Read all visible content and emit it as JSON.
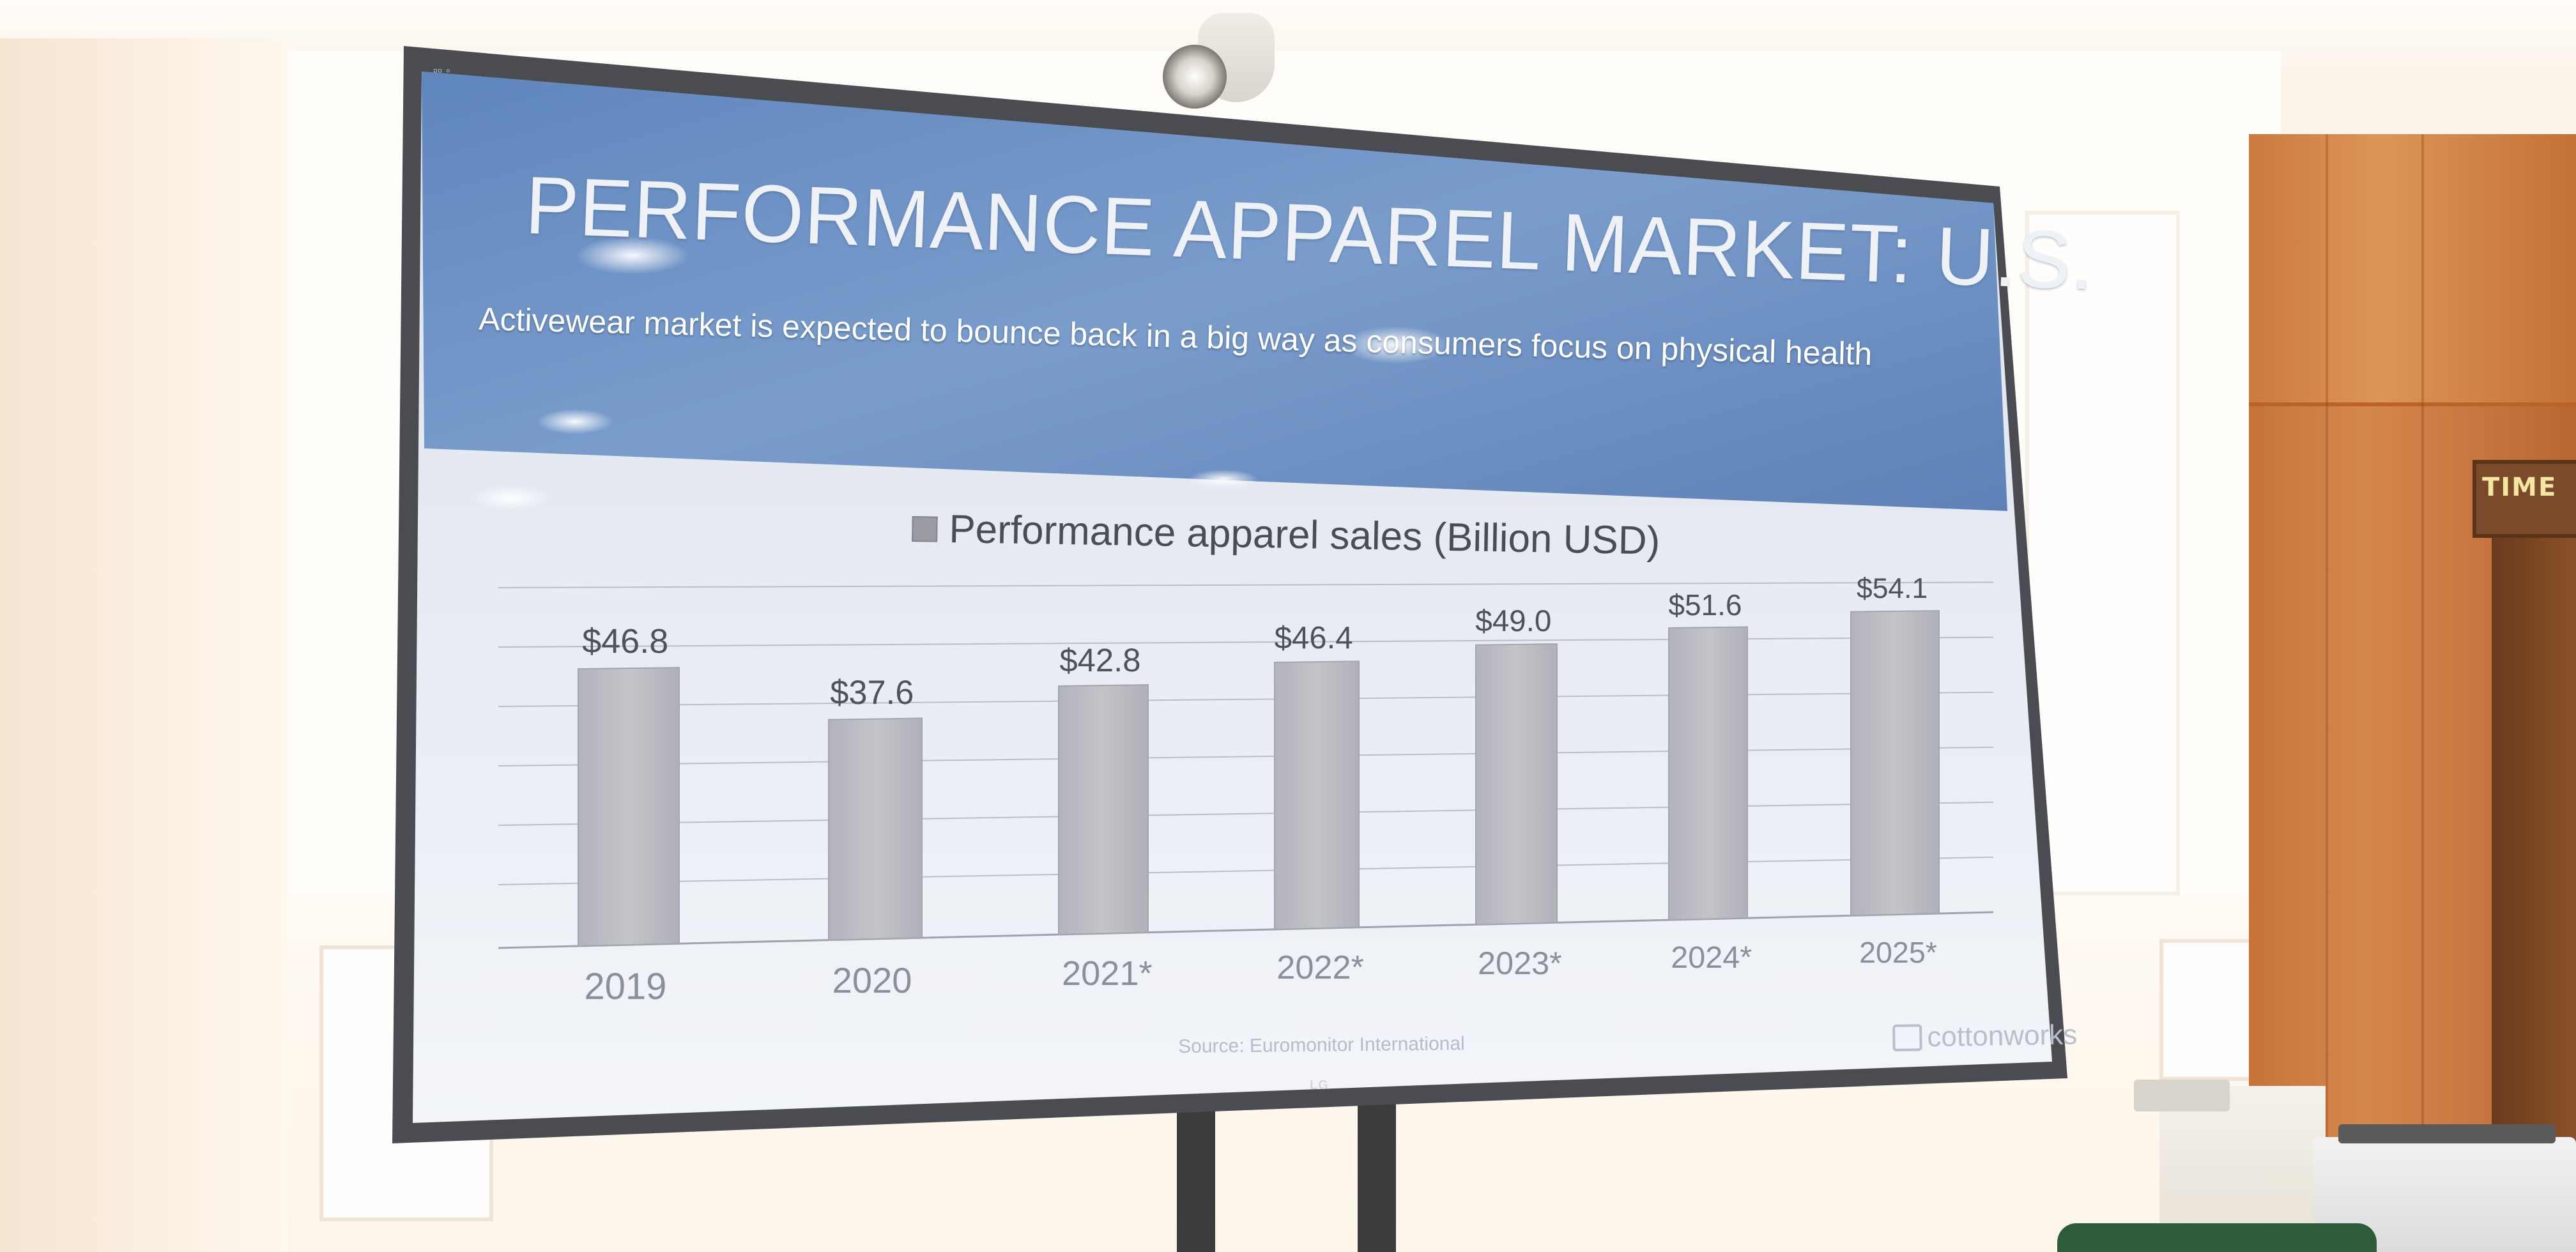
{
  "slide": {
    "title": "PERFORMANCE APPAREL MARKET: U.S.",
    "subtitle": "Activewear market is expected to bounce back in a big way as consumers focus on physical health",
    "source": "Source: Euromonitor International",
    "brand": "cottonworks"
  },
  "display": {
    "manufacturer_logo": "LG"
  },
  "background_objects": {
    "clock_label": "TIME"
  },
  "colors": {
    "header_blue": "#6f93c4",
    "slide_body": "#e4e9f2",
    "bar_fill": "#b9bac1"
  },
  "chart_data": {
    "type": "bar",
    "legend": [
      "Performance apparel sales (Billion USD)"
    ],
    "legend_position": "top-center",
    "categories": [
      "2019",
      "2020",
      "2021*",
      "2022*",
      "2023*",
      "2024*",
      "2025*"
    ],
    "series": [
      {
        "name": "Performance apparel sales (Billion USD)",
        "values": [
          46.8,
          37.6,
          42.8,
          46.4,
          49.0,
          51.6,
          54.1
        ],
        "labels": [
          "$46.8",
          "$37.6",
          "$42.8",
          "$46.4",
          "$49.0",
          "$51.6",
          "$54.1"
        ]
      }
    ],
    "ylim": [
      0,
      60
    ],
    "grid": true,
    "xlabel": "",
    "ylabel": ""
  }
}
